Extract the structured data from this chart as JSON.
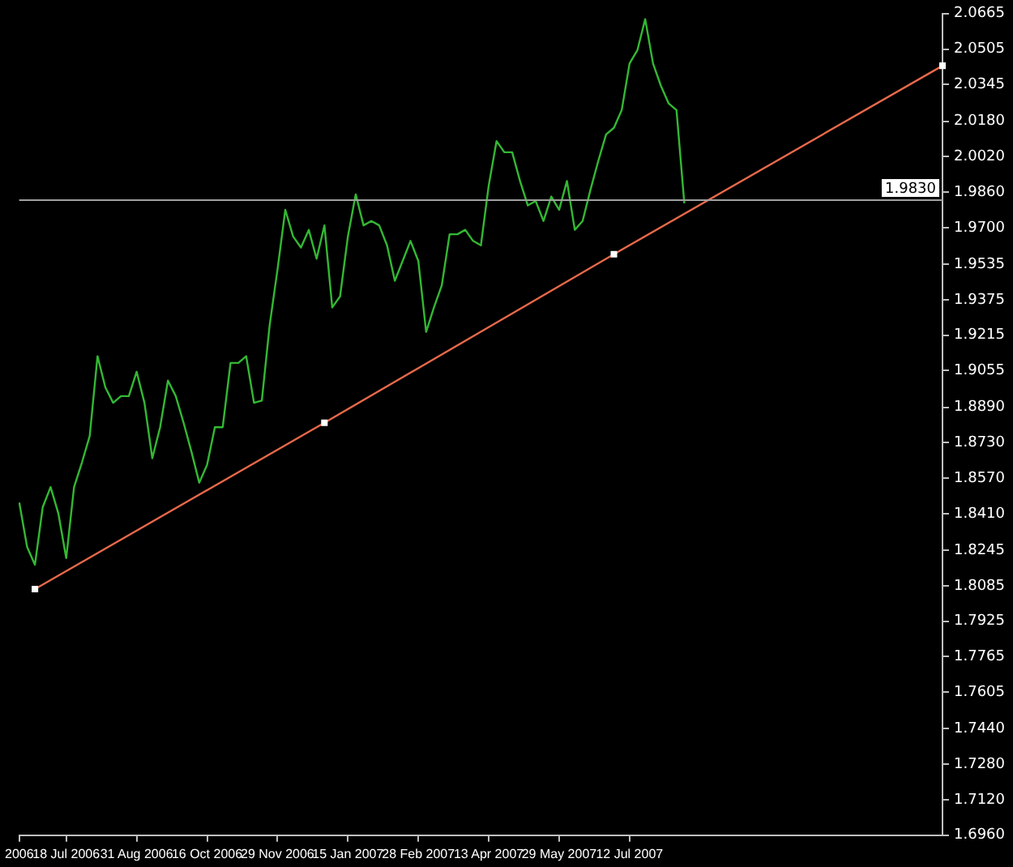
{
  "chart_data": {
    "type": "line",
    "categories": [
      "2006",
      null,
      null,
      null,
      null,
      null,
      "18 Jul 2006",
      null,
      null,
      null,
      null,
      null,
      null,
      null,
      null,
      "31 Aug 2006",
      null,
      null,
      null,
      null,
      null,
      null,
      null,
      null,
      "16 Oct 2006",
      null,
      null,
      null,
      null,
      null,
      null,
      null,
      null,
      "29 Nov 2006",
      null,
      null,
      null,
      null,
      null,
      null,
      null,
      null,
      "15 Jan 2007",
      null,
      null,
      null,
      null,
      null,
      null,
      null,
      null,
      "28 Feb 2007",
      null,
      null,
      null,
      null,
      null,
      null,
      null,
      null,
      "13 Apr 2007",
      null,
      null,
      null,
      null,
      null,
      null,
      null,
      null,
      "29 May 2007",
      null,
      null,
      null,
      null,
      null,
      null,
      null,
      null,
      "12 Jul 2007",
      null,
      null,
      null,
      null,
      null,
      null,
      null,
      null,
      null,
      null,
      null,
      null,
      null,
      null,
      null,
      null,
      null,
      null,
      null,
      null,
      null,
      null,
      null,
      null,
      null,
      null,
      null,
      null,
      null,
      null,
      null,
      null,
      null,
      null,
      null,
      null,
      null,
      null,
      null,
      null
    ],
    "series": [
      {
        "color": "#33b833",
        "marker": "none",
        "values": [
          1.846,
          1.826,
          1.818,
          1.844,
          1.853,
          1.841,
          1.821,
          1.853,
          1.864,
          1.876,
          1.912,
          1.898,
          1.891,
          1.894,
          1.894,
          1.905,
          1.891,
          1.866,
          1.88,
          1.901,
          1.894,
          1.882,
          1.869,
          1.855,
          1.863,
          1.88,
          1.88,
          1.909,
          1.909,
          1.912,
          1.891,
          1.892,
          1.926,
          1.951,
          1.978,
          1.966,
          1.961,
          1.969,
          1.956,
          1.971,
          1.934,
          1.939,
          1.966,
          1.985,
          1.971,
          1.973,
          1.971,
          1.962,
          1.946,
          1.955,
          1.964,
          1.955,
          1.923,
          1.934,
          1.944,
          1.967,
          1.967,
          1.969,
          1.964,
          1.962,
          1.989,
          2.009,
          2.004,
          2.004,
          1.991,
          1.98,
          1.982,
          1.973,
          1.984,
          1.978,
          1.991,
          1.969,
          1.973,
          1.987,
          2.0,
          2.012,
          2.015,
          2.023,
          2.044,
          2.05,
          2.064,
          2.044,
          2.034,
          2.026,
          2.023,
          1.981,
          null,
          null,
          null,
          null,
          null,
          null,
          null,
          null,
          null,
          null,
          null,
          null,
          null,
          null,
          null,
          null,
          null,
          null,
          null,
          null,
          null,
          null,
          null,
          null,
          null,
          null,
          null,
          null,
          null,
          null,
          null,
          null,
          null
        ]
      },
      {
        "type": "line",
        "color": "#e8694a",
        "marker": "square",
        "values": [
          null,
          null,
          1.807,
          null,
          null,
          null,
          null,
          null,
          null,
          null,
          null,
          null,
          null,
          null,
          null,
          null,
          null,
          null,
          null,
          null,
          null,
          null,
          null,
          null,
          null,
          null,
          null,
          null,
          null,
          null,
          null,
          null,
          null,
          null,
          null,
          null,
          null,
          null,
          null,
          1.882,
          null,
          null,
          null,
          null,
          null,
          null,
          null,
          null,
          null,
          null,
          null,
          null,
          null,
          null,
          null,
          null,
          null,
          null,
          null,
          null,
          null,
          null,
          null,
          null,
          null,
          null,
          null,
          null,
          null,
          null,
          null,
          null,
          null,
          null,
          null,
          null,
          1.958,
          null,
          null,
          null,
          null,
          null,
          null,
          null,
          null,
          null,
          null,
          null,
          null,
          null,
          null,
          null,
          null,
          null,
          null,
          null,
          null,
          null,
          null,
          null,
          null,
          null,
          null,
          null,
          null,
          null,
          null,
          null,
          null,
          null,
          null,
          null,
          null,
          null,
          null,
          null,
          null,
          null,
          2.043
        ]
      }
    ],
    "ylim": [
      1.696,
      2.0665
    ],
    "yticks": [
      {
        "value": 2.0665,
        "label": "2.0665"
      },
      {
        "value": 2.0505,
        "label": "2.0505"
      },
      {
        "value": 2.0345,
        "label": "2.0345"
      },
      {
        "value": 2.018,
        "label": "2.0180"
      },
      {
        "value": 2.002,
        "label": "2.0020"
      },
      {
        "value": 1.986,
        "label": "1.9860"
      },
      {
        "value": 1.97,
        "label": "1.9700"
      },
      {
        "value": 1.9535,
        "label": "1.9535"
      },
      {
        "value": 1.9375,
        "label": "1.9375"
      },
      {
        "value": 1.9215,
        "label": "1.9215"
      },
      {
        "value": 1.9055,
        "label": "1.9055"
      },
      {
        "value": 1.889,
        "label": "1.8890"
      },
      {
        "value": 1.873,
        "label": "1.8730"
      },
      {
        "value": 1.857,
        "label": "1.8570"
      },
      {
        "value": 1.841,
        "label": "1.8410"
      },
      {
        "value": 1.8245,
        "label": "1.8245"
      },
      {
        "value": 1.8085,
        "label": "1.8085"
      },
      {
        "value": 1.7925,
        "label": "1.7925"
      },
      {
        "value": 1.7765,
        "label": "1.7765"
      },
      {
        "value": 1.7605,
        "label": "1.7605"
      },
      {
        "value": 1.744,
        "label": "1.7440"
      },
      {
        "value": 1.728,
        "label": "1.7280"
      },
      {
        "value": 1.712,
        "label": "1.7120"
      },
      {
        "value": 1.696,
        "label": "1.6960"
      }
    ],
    "ref_lines": [
      {
        "axis": "y",
        "value": 1.983,
        "label": "1.9830",
        "color": "#a0a0a0"
      }
    ],
    "grid": false,
    "legend": false
  }
}
